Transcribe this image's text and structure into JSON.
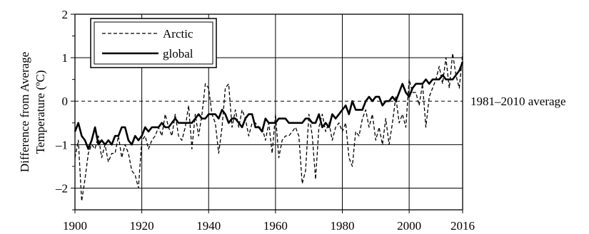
{
  "chart_data": {
    "type": "line",
    "title": "",
    "xlabel": "",
    "ylabel": "Difference from Average Temperature (ºC)",
    "ylabel_lines": [
      "Difference from Average",
      "Temperature (ºC)"
    ],
    "xlim": [
      1900,
      2016
    ],
    "ylim": [
      -2.5,
      2
    ],
    "x_ticks": [
      1900,
      1920,
      1940,
      1960,
      1980,
      2000,
      2016
    ],
    "x_tick_labels": [
      "1900",
      "1920",
      "1940",
      "1960",
      "1980",
      "2000",
      "2016"
    ],
    "y_ticks": [
      2,
      1,
      0,
      -1,
      -2
    ],
    "y_tick_labels": [
      "2",
      "1",
      "0",
      "–1",
      "–2"
    ],
    "grid": true,
    "legend_position": "top-left",
    "reference_line": {
      "y": 0,
      "label": "1981–2010 average",
      "style": "dashed"
    },
    "series": [
      {
        "name": "Arctic",
        "style": "dashed",
        "color": "#000000",
        "x": [
          1900,
          1901,
          1902,
          1903,
          1904,
          1905,
          1906,
          1907,
          1908,
          1909,
          1910,
          1911,
          1912,
          1913,
          1914,
          1915,
          1916,
          1917,
          1918,
          1919,
          1920,
          1921,
          1922,
          1923,
          1924,
          1925,
          1926,
          1927,
          1928,
          1929,
          1930,
          1931,
          1932,
          1933,
          1934,
          1935,
          1936,
          1937,
          1938,
          1939,
          1940,
          1941,
          1942,
          1943,
          1944,
          1945,
          1946,
          1947,
          1948,
          1949,
          1950,
          1951,
          1952,
          1953,
          1954,
          1955,
          1956,
          1957,
          1958,
          1959,
          1960,
          1961,
          1962,
          1963,
          1964,
          1965,
          1966,
          1967,
          1968,
          1969,
          1970,
          1971,
          1972,
          1973,
          1974,
          1975,
          1976,
          1977,
          1978,
          1979,
          1980,
          1981,
          1982,
          1983,
          1984,
          1985,
          1986,
          1987,
          1988,
          1989,
          1990,
          1991,
          1992,
          1993,
          1994,
          1995,
          1996,
          1997,
          1998,
          1999,
          2000,
          2001,
          2002,
          2003,
          2004,
          2005,
          2006,
          2007,
          2008,
          2009,
          2010,
          2011,
          2012,
          2013,
          2014,
          2015,
          2016
        ],
        "y": [
          -1.3,
          -0.9,
          -2.3,
          -1.8,
          -1.2,
          -1.0,
          -1.1,
          -0.8,
          -1.3,
          -1.0,
          -1.4,
          -1.2,
          -1.2,
          -0.8,
          -1.3,
          -1.0,
          -1.2,
          -1.6,
          -1.7,
          -2.0,
          -0.9,
          -0.8,
          -1.1,
          -0.9,
          -0.8,
          -0.6,
          -0.8,
          -0.3,
          -0.6,
          -0.8,
          -0.3,
          -0.8,
          -0.9,
          -0.6,
          -0.1,
          -1.1,
          -0.3,
          -0.8,
          -0.3,
          0.4,
          0.3,
          -0.3,
          -0.5,
          -1.2,
          -0.6,
          0.3,
          0.4,
          -0.6,
          -0.2,
          -0.6,
          -0.2,
          -0.4,
          -0.8,
          -0.5,
          -0.5,
          -0.6,
          -0.6,
          -0.9,
          -0.5,
          -1.2,
          -0.3,
          -1.3,
          -0.9,
          -0.8,
          -0.8,
          -0.7,
          -0.6,
          -0.8,
          -1.9,
          -1.6,
          -0.3,
          -0.8,
          -1.8,
          -0.6,
          -0.3,
          -0.7,
          -0.5,
          -0.9,
          -0.6,
          -0.5,
          -0.7,
          -0.5,
          -1.3,
          -1.5,
          -0.7,
          -0.8,
          -0.4,
          -0.2,
          -0.6,
          -0.3,
          -0.9,
          -0.6,
          -1.0,
          -0.4,
          -1.0,
          -0.5,
          0.1,
          -0.5,
          -0.3,
          -0.6,
          0.5,
          0.2,
          0.2,
          -0.1,
          0.4,
          -0.6,
          0.1,
          0.3,
          0.5,
          0.8,
          0.4,
          1.0,
          0.3,
          1.1,
          0.6,
          0.3,
          1.1
        ]
      },
      {
        "name": "global",
        "style": "solid",
        "color": "#000000",
        "x": [
          1900,
          1901,
          1902,
          1903,
          1904,
          1905,
          1906,
          1907,
          1908,
          1909,
          1910,
          1911,
          1912,
          1913,
          1914,
          1915,
          1916,
          1917,
          1918,
          1919,
          1920,
          1921,
          1922,
          1923,
          1924,
          1925,
          1926,
          1927,
          1928,
          1929,
          1930,
          1931,
          1932,
          1933,
          1934,
          1935,
          1936,
          1937,
          1938,
          1939,
          1940,
          1941,
          1942,
          1943,
          1944,
          1945,
          1946,
          1947,
          1948,
          1949,
          1950,
          1951,
          1952,
          1953,
          1954,
          1955,
          1956,
          1957,
          1958,
          1959,
          1960,
          1961,
          1962,
          1963,
          1964,
          1965,
          1966,
          1967,
          1968,
          1969,
          1970,
          1971,
          1972,
          1973,
          1974,
          1975,
          1976,
          1977,
          1978,
          1979,
          1980,
          1981,
          1982,
          1983,
          1984,
          1985,
          1986,
          1987,
          1988,
          1989,
          1990,
          1991,
          1992,
          1993,
          1994,
          1995,
          1996,
          1997,
          1998,
          1999,
          2000,
          2001,
          2002,
          2003,
          2004,
          2005,
          2006,
          2007,
          2008,
          2009,
          2010,
          2011,
          2012,
          2013,
          2014,
          2015,
          2016
        ],
        "y": [
          -0.7,
          -0.5,
          -0.8,
          -0.9,
          -1.1,
          -0.9,
          -0.6,
          -1.0,
          -0.9,
          -1.0,
          -0.9,
          -1.0,
          -0.8,
          -0.8,
          -0.6,
          -0.6,
          -0.9,
          -1.0,
          -0.8,
          -0.9,
          -0.8,
          -0.6,
          -0.7,
          -0.6,
          -0.6,
          -0.6,
          -0.5,
          -0.6,
          -0.6,
          -0.5,
          -0.4,
          -0.5,
          -0.5,
          -0.5,
          -0.5,
          -0.5,
          -0.4,
          -0.3,
          -0.4,
          -0.4,
          -0.3,
          -0.3,
          -0.3,
          -0.4,
          -0.2,
          -0.3,
          -0.5,
          -0.4,
          -0.4,
          -0.5,
          -0.6,
          -0.4,
          -0.3,
          -0.3,
          -0.6,
          -0.6,
          -0.7,
          -0.4,
          -0.5,
          -0.5,
          -0.5,
          -0.4,
          -0.4,
          -0.4,
          -0.5,
          -0.5,
          -0.5,
          -0.5,
          -0.5,
          -0.4,
          -0.4,
          -0.5,
          -0.5,
          -0.3,
          -0.6,
          -0.5,
          -0.6,
          -0.3,
          -0.4,
          -0.3,
          -0.2,
          -0.1,
          -0.3,
          0.0,
          -0.2,
          -0.2,
          -0.2,
          0.0,
          0.1,
          0.0,
          0.1,
          0.1,
          -0.1,
          0.0,
          0.0,
          0.1,
          0.0,
          0.2,
          0.4,
          0.2,
          0.1,
          0.3,
          0.4,
          0.4,
          0.4,
          0.5,
          0.4,
          0.5,
          0.5,
          0.5,
          0.6,
          0.5,
          0.5,
          0.5,
          0.6,
          0.7,
          0.9
        ]
      }
    ]
  }
}
